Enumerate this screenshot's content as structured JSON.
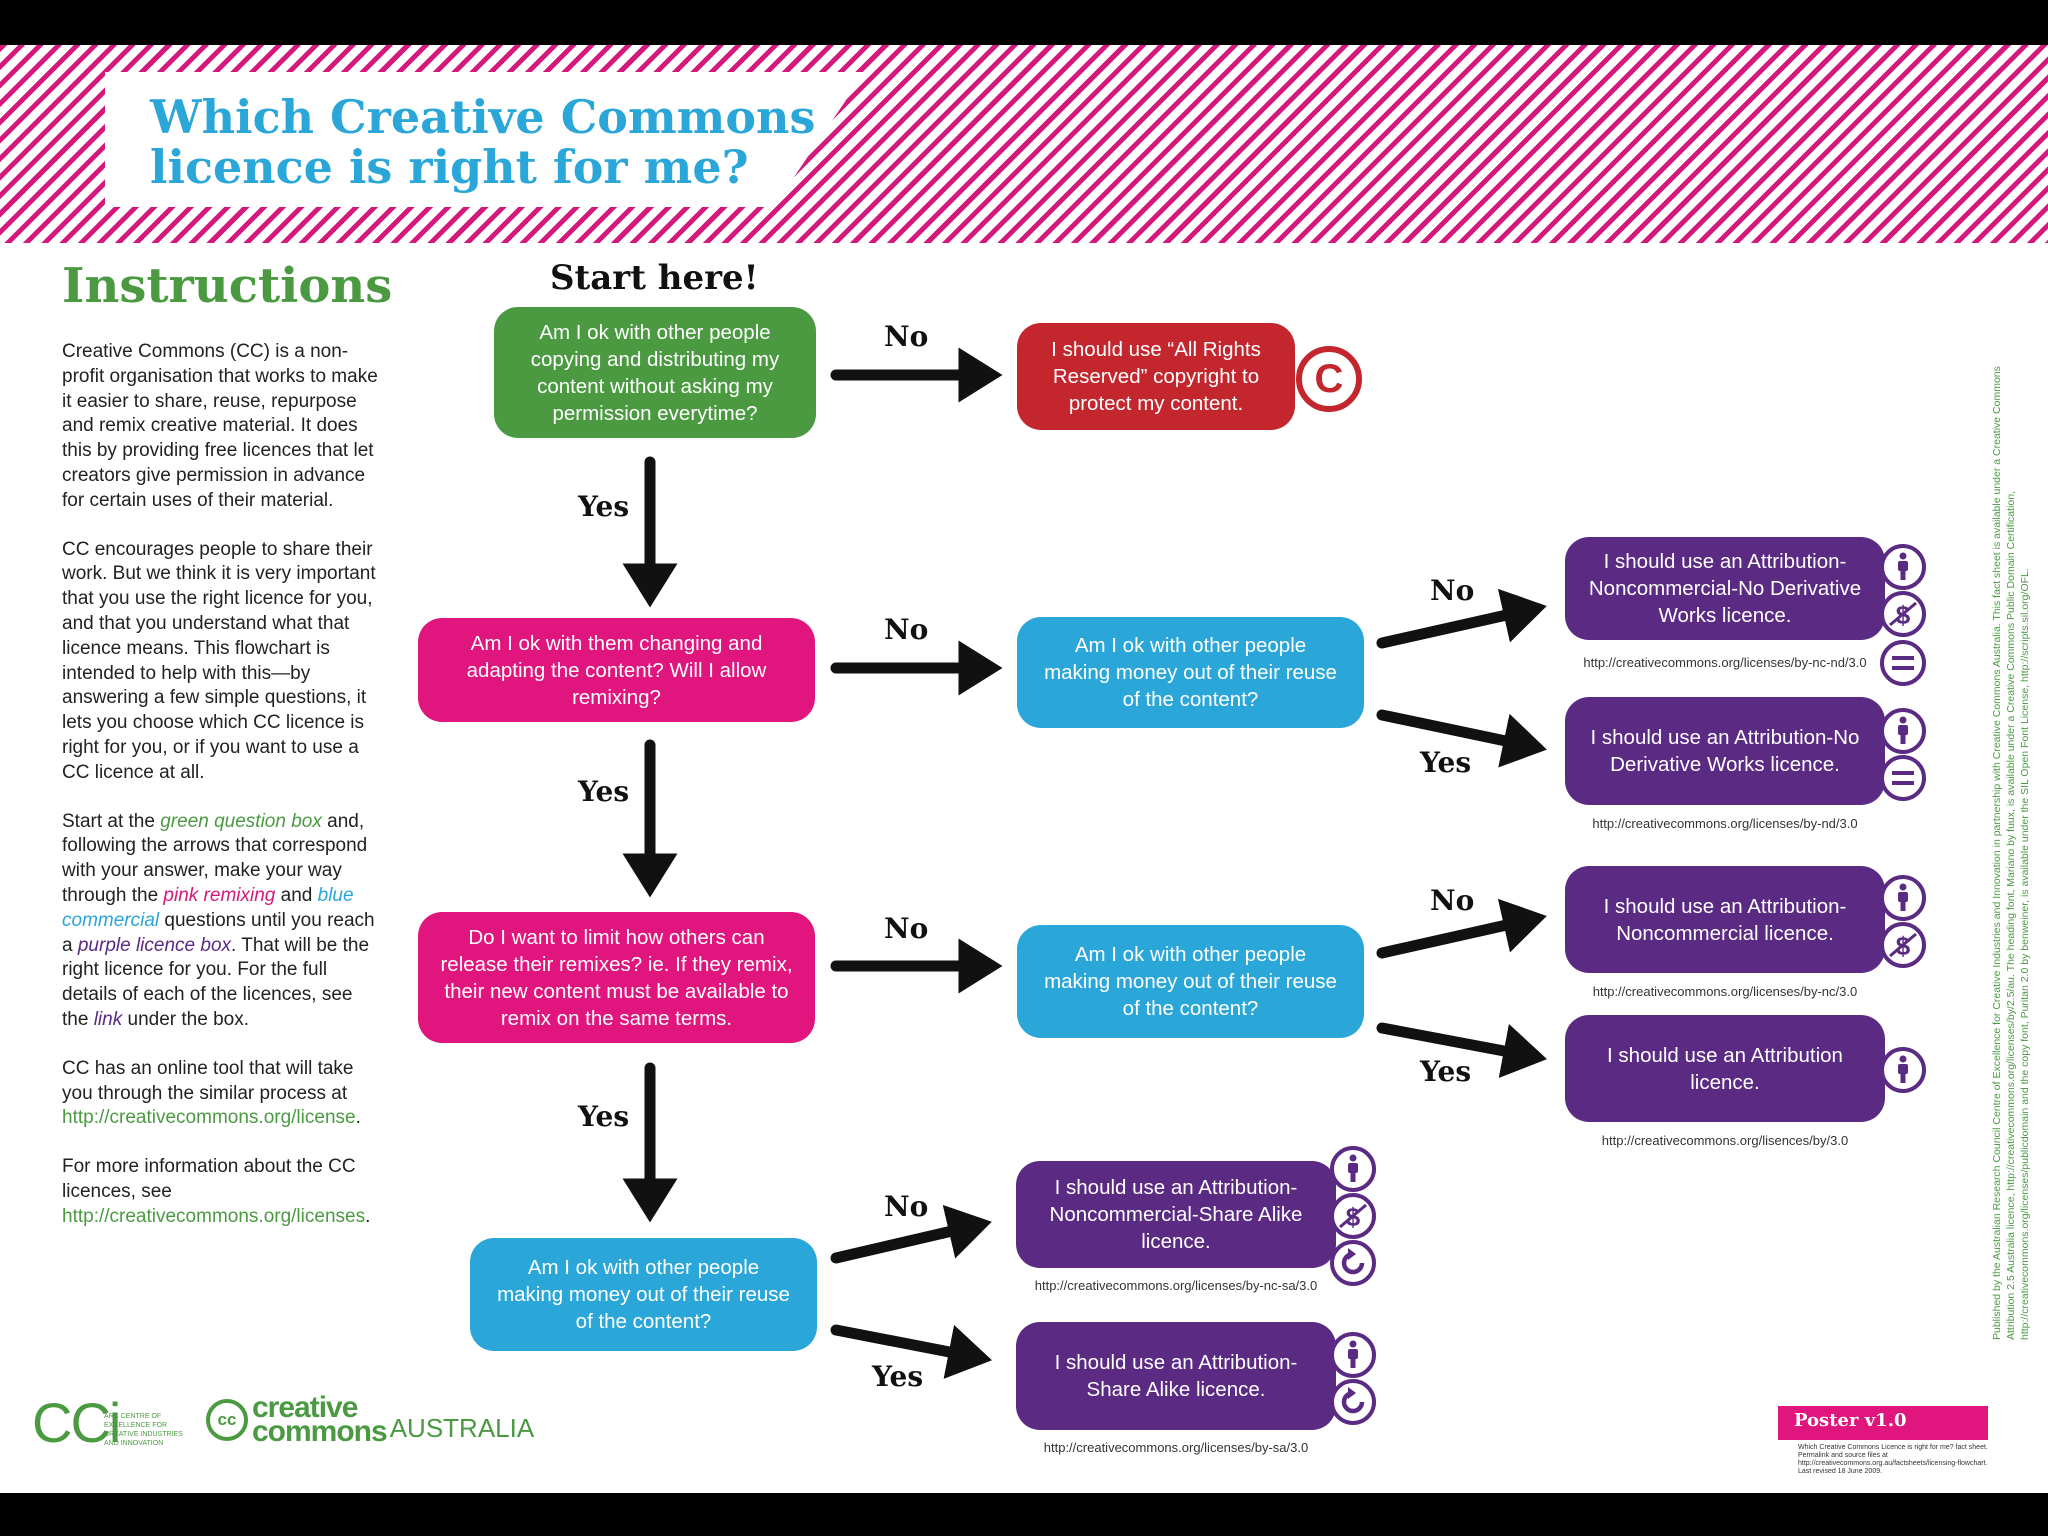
{
  "colors": {
    "green": "#4b9a42",
    "red": "#c4262e",
    "pink": "#e0157d",
    "blue": "#2ba6d8",
    "purple": "#5b2a82",
    "stripe": "#d4197c"
  },
  "header": {
    "title_line1": "Which Creative Commons",
    "title_line2": "licence is right for me?"
  },
  "sidebar": {
    "heading": "Instructions",
    "paragraphs": [
      [
        {
          "t": "Creative Commons (CC) is a non-profit organisation that works to make it easier to share, reuse, repurpose and remix creative material. It does this by providing free licences that let creators give permission in advance for certain uses of their material."
        }
      ],
      [
        {
          "t": "CC encourages people to share their work. But we think it is very important that you use the right licence for you, and that you understand what that licence means. This flowchart is intended to help with this—by answering a few simple questions, it lets you choose which CC licence is right for you, or if you want to use a CC licence at all."
        }
      ],
      [
        {
          "t": "Start at the "
        },
        {
          "t": "green question box",
          "c": "green"
        },
        {
          "t": " and, following the arrows that correspond with your answer, make your way through the "
        },
        {
          "t": "pink remixing",
          "c": "pink"
        },
        {
          "t": " and "
        },
        {
          "t": "blue commercial",
          "c": "blue"
        },
        {
          "t": " questions until you reach a "
        },
        {
          "t": "purple licence box",
          "c": "purple"
        },
        {
          "t": ". That will be the right licence for you. For the full details of each of the licences, see the "
        },
        {
          "t": "link",
          "c": "purple"
        },
        {
          "t": " under the box."
        }
      ],
      [
        {
          "t": "CC has an online tool that will take you through the similar process at "
        },
        {
          "t": "http://creativecommons.org/license",
          "c": "link"
        },
        {
          "t": "."
        }
      ],
      [
        {
          "t": "For more information about the CC licences, see "
        },
        {
          "t": "http://creativecommons.org/licenses",
          "c": "link"
        },
        {
          "t": "."
        }
      ]
    ]
  },
  "flow": {
    "start": "Start here!",
    "q1": "Am I ok with other people copying and distributing my content without asking my permission everytime?",
    "all_rights": "I should use “All Rights Reserved” copyright to protect my content.",
    "copyright_symbol": "C",
    "q2": "Am I ok with them changing and adapting the content? Will I allow remixing?",
    "q3": "Do I want to limit how others can release their remixes? ie. If they remix, their new content must be available to remix on the same terms.",
    "commercial": "Am I ok with other people making money out of their reuse of the content?",
    "yes": "Yes",
    "no": "No",
    "licences": [
      {
        "id": "by-nc-nd",
        "text": "I should use an Attribution-Noncommercial-No Derivative Works licence.",
        "url": "http://creativecommons.org/licenses/by-nc-nd/3.0",
        "icons": [
          "attribution",
          "noncommercial",
          "noderivs"
        ]
      },
      {
        "id": "by-nd",
        "text": "I should use an Attribution-No Derivative Works licence.",
        "url": "http://creativecommons.org/licenses/by-nd/3.0",
        "icons": [
          "attribution",
          "noderivs"
        ]
      },
      {
        "id": "by-nc",
        "text": "I should use an Attribution-Noncommercial licence.",
        "url": "http://creativecommons.org/licenses/by-nc/3.0",
        "icons": [
          "attribution",
          "noncommercial"
        ]
      },
      {
        "id": "by",
        "text": "I should use an Attribution licence.",
        "url": "http://creativecommons.org/lisences/by/3.0",
        "icons": [
          "attribution"
        ]
      },
      {
        "id": "by-nc-sa",
        "text": "I should use an Attribution-Noncommercial-Share Alike licence.",
        "url": "http://creativecommons.org/licenses/by-nc-sa/3.0",
        "icons": [
          "attribution",
          "noncommercial",
          "sharealike"
        ]
      },
      {
        "id": "by-sa",
        "text": "I should use an Attribution-Share Alike licence.",
        "url": "http://creativecommons.org/licenses/by-sa/3.0",
        "icons": [
          "attribution",
          "sharealike"
        ]
      }
    ]
  },
  "footer": {
    "cci_logo": "CCi",
    "cci_sub": "ARC CENTRE OF EXCELLENCE FOR CREATIVE INDUSTRIES AND INNOVATION",
    "cc_logo_circle": "cc",
    "cc_logo_line1": "creative",
    "cc_logo_line2": "commons",
    "cc_logo_country": "AUSTRALIA",
    "poster_version": "Poster v1.0",
    "poster_note": "Which Creative Commons Licence is right for me? fact sheet. Permalink and source files at http://creativecommons.org.au/factsheets/licensing-flowchart. Last revised 18 June 2009.",
    "credits": "Published by the Australian Research Council Centre of Excellence for Creative Industries and Innovation in partnership with Creative Commons Australia. This fact sheet is available under a Creative Commons Attribution 2.5 Australia licence, http://creativecommons.org/licenses/by/2.5/au. The heading font, Mariano by fuux, is available under a Creative Commons Public Domain Certification, http://creativecommons.org/licenses/publicdomain and the copy font, Puritan 2.0 by benweiner, is available under the SIL Open Font License, http://scripts.sil.org/OFL."
  }
}
